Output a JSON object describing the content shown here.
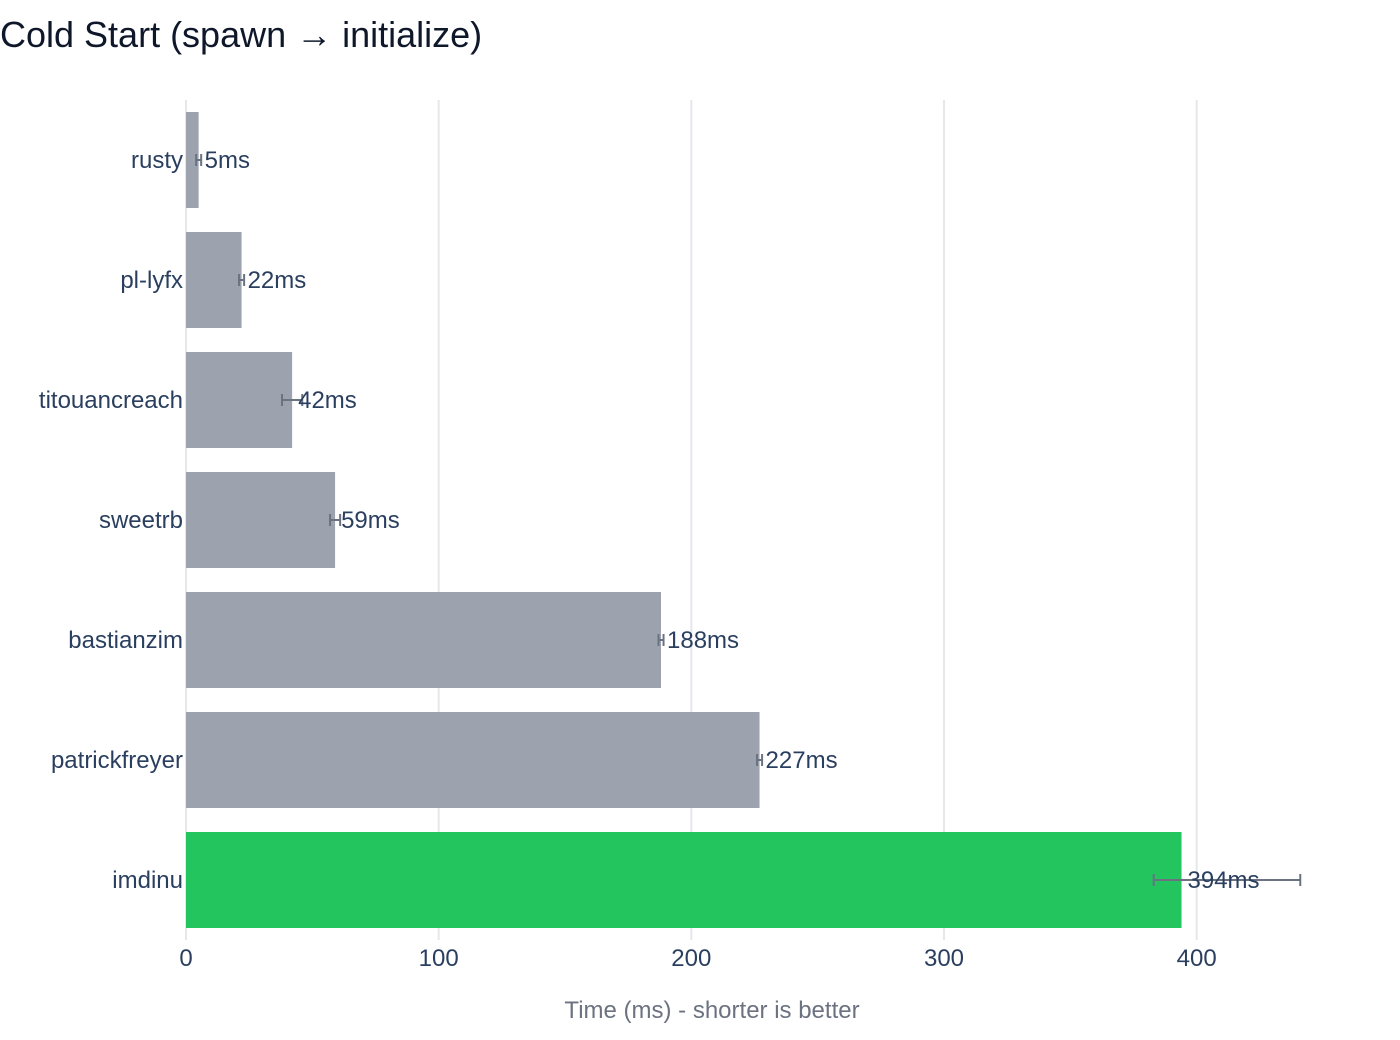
{
  "chart_data": {
    "type": "bar",
    "orientation": "horizontal",
    "title": "Cold Start (spawn → initialize)",
    "xlabel": "Time (ms) - shorter is better",
    "ylabel": "",
    "xlim": [
      0,
      450
    ],
    "x_ticks": [
      0,
      100,
      200,
      300,
      400
    ],
    "grid": true,
    "categories": [
      "rusty",
      "pl-lyfx",
      "titouancreach",
      "sweetrb",
      "bastianzim",
      "patrickfreyer",
      "imdinu"
    ],
    "values": [
      5,
      22,
      42,
      59,
      188,
      227,
      394
    ],
    "error_minus": [
      1,
      1,
      4,
      2,
      1,
      1,
      11
    ],
    "error_plus": [
      1,
      1,
      4,
      2,
      1,
      1,
      47
    ],
    "data_labels": [
      "5ms",
      "22ms",
      "42ms",
      "59ms",
      "188ms",
      "227ms",
      "394ms"
    ],
    "colors": [
      "#9ca3af",
      "#9ca3af",
      "#9ca3af",
      "#9ca3af",
      "#9ca3af",
      "#9ca3af",
      "#22c55e"
    ],
    "error_bar_color": "#6b7280",
    "grid_color": "#e5e7eb",
    "axis_line_color": "#e5e7eb"
  }
}
